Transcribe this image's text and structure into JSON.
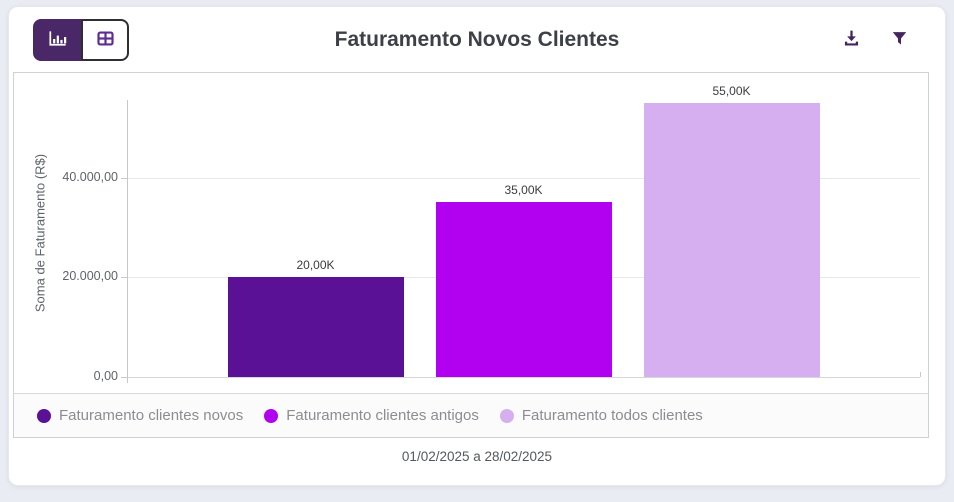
{
  "header": {
    "title": "Faturamento Novos Clientes",
    "view_toggle": {
      "selected": "chart",
      "options": [
        {
          "name": "chart",
          "icon": "bar-chart-icon",
          "active": true
        },
        {
          "name": "table",
          "icon": "table-icon",
          "active": false
        }
      ]
    },
    "actions": [
      {
        "name": "download",
        "icon": "download-icon"
      },
      {
        "name": "filter",
        "icon": "funnel-icon"
      }
    ]
  },
  "colors": {
    "accent_dark_purple": "#4A2767",
    "icon_purple": "#44265E",
    "table_icon_purple": "#5E2D91",
    "bar_clientes_novos": "#5A1196",
    "bar_clientes_antigos": "#B200F0",
    "bar_todos_clientes": "#D6AFF0",
    "page_background": "#E9ECF2",
    "panel_border": "#D0D1D4",
    "gridline": "#E8E8EA"
  },
  "chart_data": {
    "type": "bar",
    "title": "Faturamento Novos Clientes",
    "xlabel": "",
    "ylabel": "Soma de Faturamento (R$)",
    "ylim": [
      0,
      55540
    ],
    "grid": true,
    "legend_position": "bottom",
    "yticks": [
      {
        "value": 0,
        "label": "0,00"
      },
      {
        "value": 20000,
        "label": "20.000,00"
      },
      {
        "value": 40000,
        "label": "40.000,00"
      }
    ],
    "series": [
      {
        "name": "Faturamento clientes novos",
        "value": 20000,
        "data_label": "20,00K",
        "color": "#5A1196"
      },
      {
        "name": "Faturamento clientes antigos",
        "value": 35000,
        "data_label": "35,00K",
        "color": "#B200F0"
      },
      {
        "name": "Faturamento todos clientes",
        "value": 55000,
        "data_label": "55,00K",
        "color": "#D6AFF0"
      }
    ]
  },
  "footer": {
    "period": "01/02/2025 a 28/02/2025"
  }
}
